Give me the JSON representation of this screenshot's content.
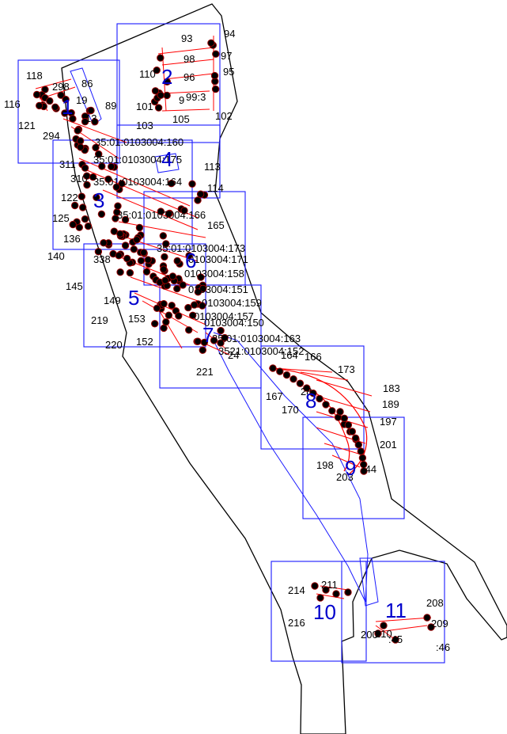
{
  "colors": {
    "boundary": "#000000",
    "sheet_frame": "#1a1aff",
    "route": "#1a1aff",
    "parcel_line": "#ff0000",
    "point_fill": "#000000",
    "point_ring": "#990000"
  },
  "sheets": [
    "1",
    "2",
    "3",
    "4",
    "5",
    "6",
    "7",
    "8",
    "9",
    "10",
    "11"
  ],
  "point_labels": [
    "118",
    "298",
    "86",
    "116",
    "121",
    "294",
    "89",
    "311",
    "310",
    "122",
    "125",
    "136",
    "140",
    "338",
    "145",
    "149",
    "219",
    "153",
    "152",
    "220",
    "93",
    "94",
    "97",
    "98",
    "96",
    "95",
    "110",
    "101",
    "103",
    "105",
    "102",
    "113",
    "114",
    "165",
    "221",
    "24",
    "164",
    "166",
    "173",
    "183",
    "189",
    "197",
    "201",
    "167",
    "198",
    "203",
    "214",
    "211",
    "216",
    "208",
    "209",
    "210",
    ":45",
    ":46",
    ":44",
    "200",
    "170",
    "28",
    "13",
    "19",
    "99:3",
    "9"
  ],
  "cadastral_labels": [
    "35:01:0103004:160",
    "35:01:0103004:175",
    "35:01:0103004:164",
    "35:01:0103004:166",
    "35:01:0103004:173",
    "0103004:171",
    "0103004:158",
    "0103004:151",
    "0103004:159",
    "0103004:157",
    "0103004:150",
    "35:01:0103004:163",
    "3521:0103004:152"
  ]
}
